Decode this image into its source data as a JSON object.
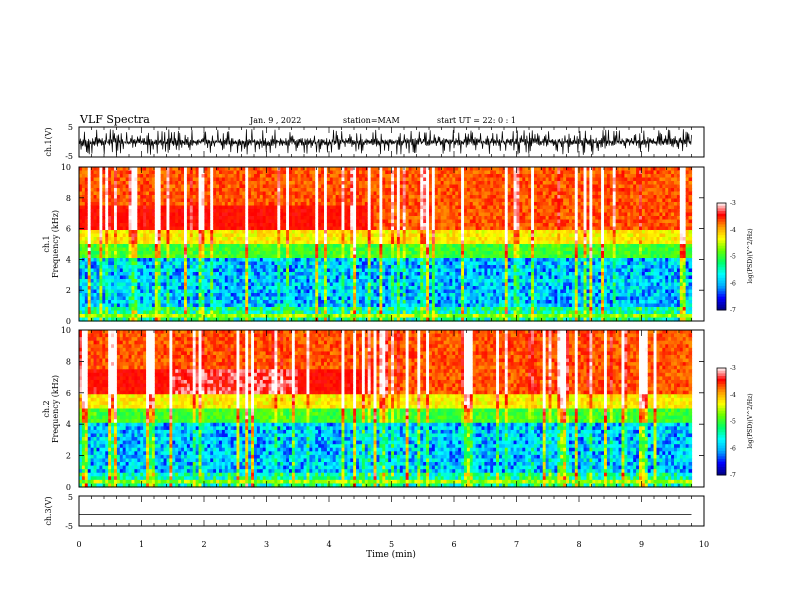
{
  "header": {
    "title": "VLF Spectra",
    "date": "Jan. 9 , 2022",
    "station": "station=MAM",
    "start": "start UT =  22: 0  : 1"
  },
  "chart_data": [
    {
      "type": "line",
      "name": "ch1-waveform",
      "ylabel": "ch.1(V)",
      "ylim": [
        -5,
        5
      ],
      "y_ticks": [
        "5",
        "-5"
      ],
      "description_values": "dense impulsive waveform"
    },
    {
      "type": "heatmap",
      "name": "ch1-spectrogram",
      "ylabel_line1": "ch.1",
      "ylabel_line2": "Frequency (kHz)",
      "xlim": [
        0,
        10
      ],
      "ylim": [
        0,
        10
      ],
      "y_ticks": [
        "0",
        "2",
        "4",
        "6",
        "8",
        "10"
      ],
      "colorbar": {
        "label": "log(PSD)(V^2/Hz)",
        "range": [
          -7,
          -3
        ],
        "ticks": [
          "-3",
          "-4",
          "-5",
          "-6",
          "-7"
        ]
      }
    },
    {
      "type": "heatmap",
      "name": "ch2-spectrogram",
      "ylabel_line1": "ch.2",
      "ylabel_line2": "Frequency (kHz)",
      "xlim": [
        0,
        10
      ],
      "ylim": [
        0,
        10
      ],
      "y_ticks": [
        "0",
        "2",
        "4",
        "6",
        "8",
        "10"
      ],
      "colorbar": {
        "label": "log(PSD)(V^2/Hz)",
        "range": [
          -7,
          -3
        ],
        "ticks": [
          "-3",
          "-4",
          "-5",
          "-6",
          "-7"
        ]
      }
    },
    {
      "type": "line",
      "name": "ch3-waveform",
      "ylabel": "ch.3(V)",
      "ylim": [
        -5,
        5
      ],
      "y_ticks": [
        "5",
        "-5"
      ],
      "x": [
        0,
        9.8
      ],
      "y": [
        -1.2,
        -1.2
      ]
    }
  ],
  "x_axis": {
    "label": "Time (min)",
    "ticks": [
      "0",
      "1",
      "2",
      "3",
      "4",
      "5",
      "6",
      "7",
      "8",
      "9",
      "10"
    ]
  },
  "colormap": [
    "#000080",
    "#0000ff",
    "#00aaff",
    "#00ffff",
    "#00ff66",
    "#66ff00",
    "#ffff00",
    "#ff9900",
    "#ff0000",
    "#ffffff"
  ]
}
